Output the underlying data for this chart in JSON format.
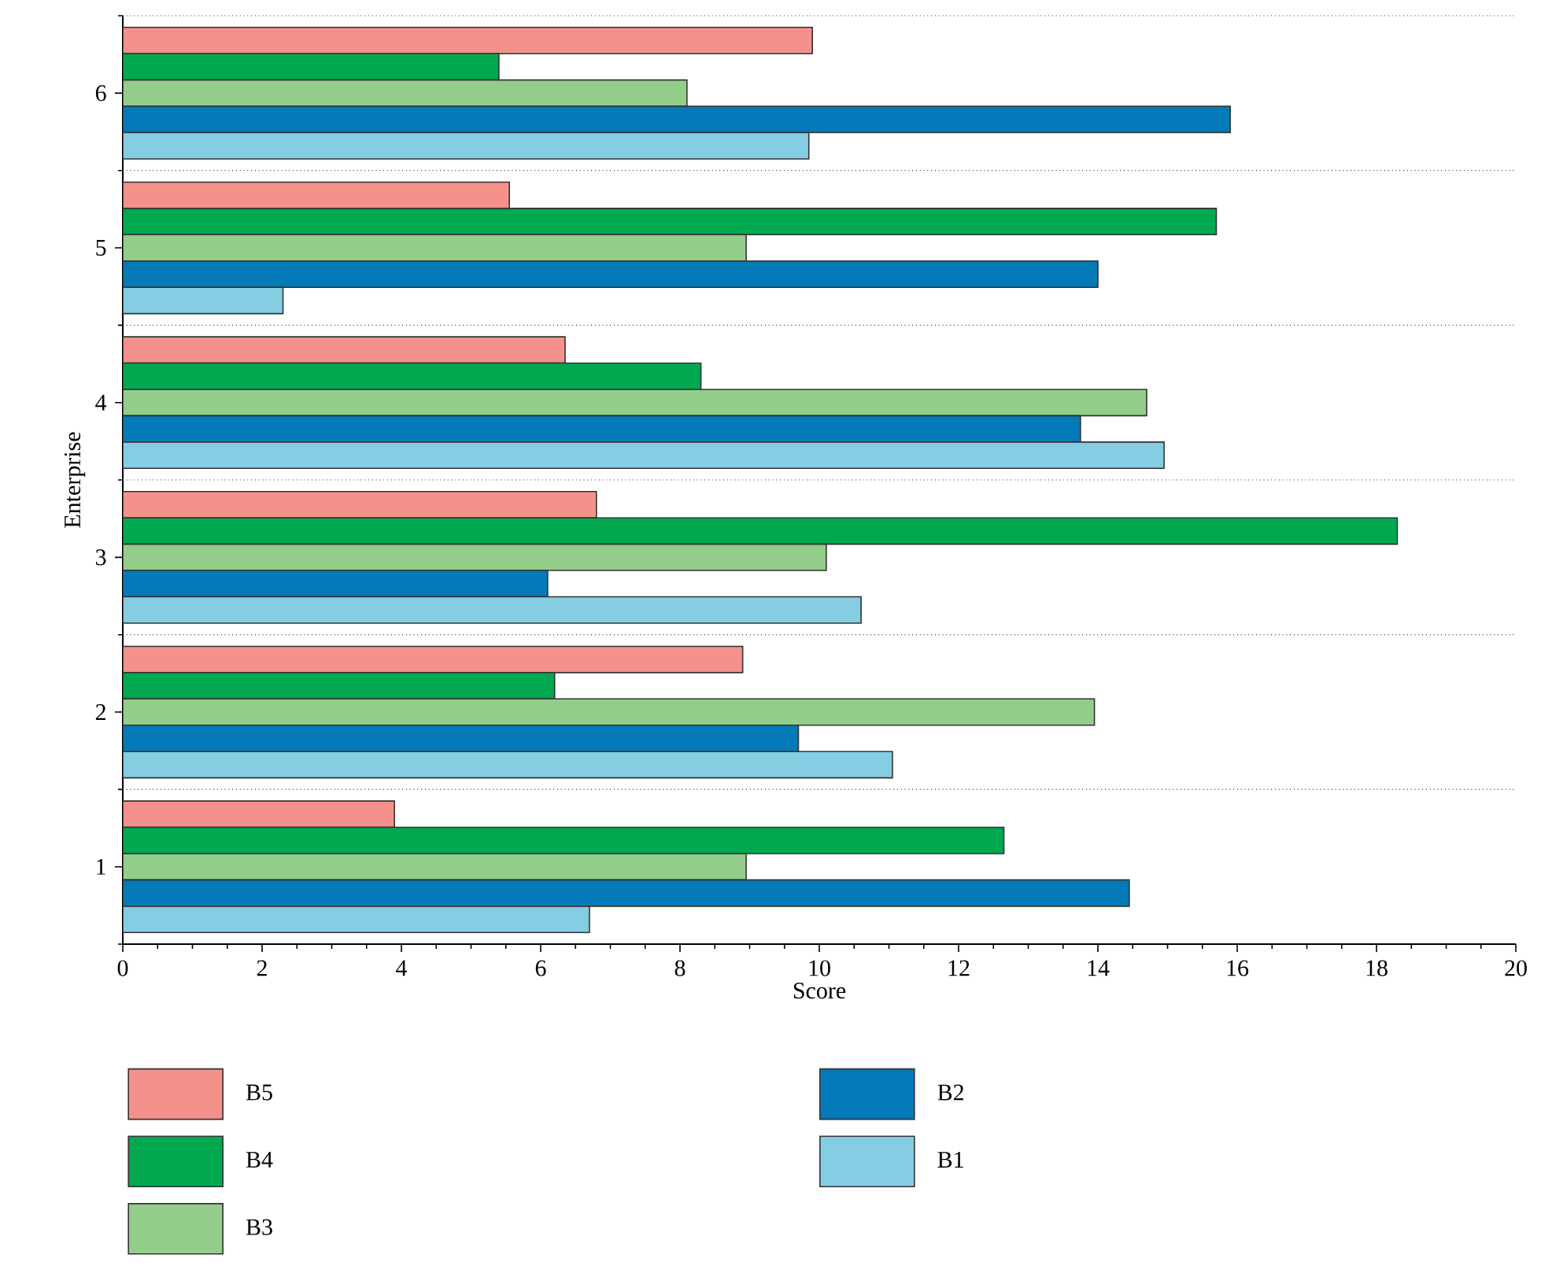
{
  "chart_data": {
    "type": "bar",
    "orientation": "horizontal",
    "xlabel": "Score",
    "ylabel": "Enterprise",
    "categories": [
      "6",
      "5",
      "4",
      "3",
      "2",
      "1"
    ],
    "series": [
      {
        "name": "B5",
        "color": "#f4918a",
        "values": [
          9.9,
          5.55,
          6.35,
          6.8,
          8.9,
          3.9
        ]
      },
      {
        "name": "B4",
        "color": "#00a94f",
        "values": [
          5.4,
          15.7,
          8.3,
          18.3,
          6.2,
          12.65
        ]
      },
      {
        "name": "B3",
        "color": "#93cd8a",
        "values": [
          8.1,
          8.95,
          14.7,
          10.1,
          13.95,
          8.95
        ]
      },
      {
        "name": "B2",
        "color": "#047ab8",
        "values": [
          15.9,
          14.0,
          13.75,
          6.1,
          9.7,
          14.45
        ]
      },
      {
        "name": "B1",
        "color": "#85cde3",
        "values": [
          9.85,
          2.3,
          14.95,
          10.6,
          11.05,
          6.7
        ]
      }
    ],
    "xlim": [
      0,
      20
    ],
    "xticks": [
      0,
      2,
      4,
      6,
      8,
      10,
      12,
      14,
      16,
      18,
      20
    ],
    "grid": "y",
    "legend": "bottom"
  }
}
